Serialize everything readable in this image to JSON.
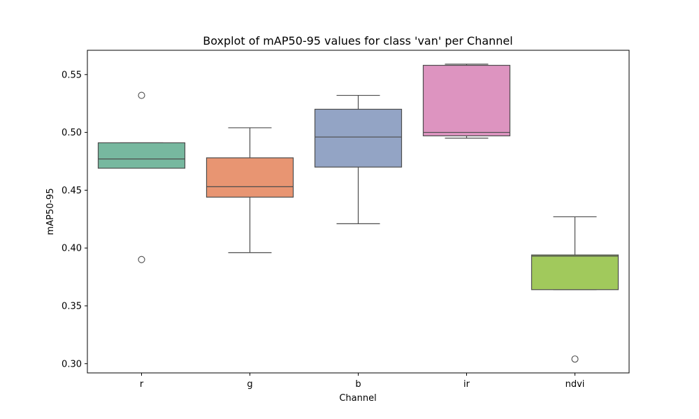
{
  "chart_data": {
    "type": "box",
    "title": "Boxplot of mAP50-95 values for class 'van' per Channel",
    "xlabel": "Channel",
    "ylabel": "mAP50-95",
    "ylim": [
      0.292,
      0.571
    ],
    "yticks": [
      "0.30",
      "0.35",
      "0.40",
      "0.45",
      "0.50",
      "0.55"
    ],
    "grid": false,
    "categories": [
      "r",
      "g",
      "b",
      "ir",
      "ndvi"
    ],
    "boxes": [
      {
        "category": "r",
        "color": "#77b89f",
        "whisker_low": 0.469,
        "q1": 0.469,
        "median": 0.477,
        "q3": 0.491,
        "whisker_high": 0.491,
        "outliers": [
          0.532,
          0.39
        ]
      },
      {
        "category": "g",
        "color": "#e89572",
        "whisker_low": 0.396,
        "q1": 0.444,
        "median": 0.453,
        "q3": 0.478,
        "whisker_high": 0.504,
        "outliers": []
      },
      {
        "category": "b",
        "color": "#93a4c5",
        "whisker_low": 0.421,
        "q1": 0.47,
        "median": 0.496,
        "q3": 0.52,
        "whisker_high": 0.532,
        "outliers": []
      },
      {
        "category": "ir",
        "color": "#dd94c0",
        "whisker_low": 0.495,
        "q1": 0.497,
        "median": 0.5,
        "q3": 0.558,
        "whisker_high": 0.559,
        "outliers": []
      },
      {
        "category": "ndvi",
        "color": "#a1c95c",
        "whisker_low": 0.364,
        "q1": 0.364,
        "median": 0.393,
        "q3": 0.394,
        "whisker_high": 0.427,
        "outliers": [
          0.304
        ]
      }
    ]
  }
}
